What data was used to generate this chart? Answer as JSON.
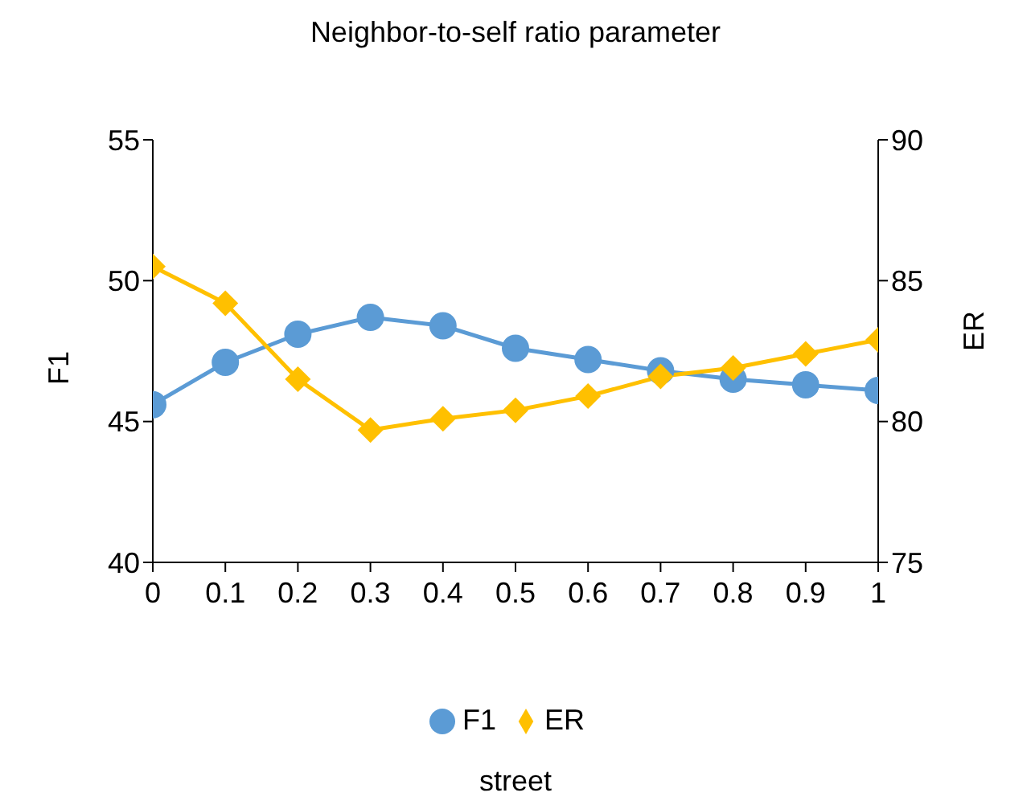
{
  "chart_data": {
    "type": "line",
    "title": "Neighbor-to-self ratio parameter",
    "annotations": [
      "street"
    ],
    "ylabel": "F1",
    "y2label": "ER",
    "x": [
      0,
      0.1,
      0.2,
      0.3,
      0.4,
      0.5,
      0.6,
      0.7,
      0.8,
      0.9,
      1
    ],
    "xlim": [
      0,
      1
    ],
    "xticks": [
      0,
      0.1,
      0.2,
      0.3,
      0.4,
      0.5,
      0.6,
      0.7,
      0.8,
      0.9,
      1
    ],
    "ylim": [
      40,
      55
    ],
    "yticks": [
      40,
      45,
      50,
      55
    ],
    "y2lim": [
      75,
      90
    ],
    "y2ticks": [
      75,
      80,
      85,
      90
    ],
    "grid": false,
    "legend": "bottom",
    "series": [
      {
        "name": "F1",
        "color": "#5b9bd5",
        "marker": "circle",
        "values": [
          45.6,
          47.1,
          48.1,
          48.7,
          48.4,
          47.6,
          47.2,
          46.8,
          46.5,
          46.3,
          46.1
        ]
      },
      {
        "name": "ER",
        "color": "#ffc000",
        "marker": "diamond",
        "axis": "y2",
        "values": [
          85.5,
          84.2,
          81.5,
          79.7,
          80.1,
          80.4,
          80.9,
          81.6,
          81.9,
          82.4,
          82.9
        ]
      }
    ]
  }
}
